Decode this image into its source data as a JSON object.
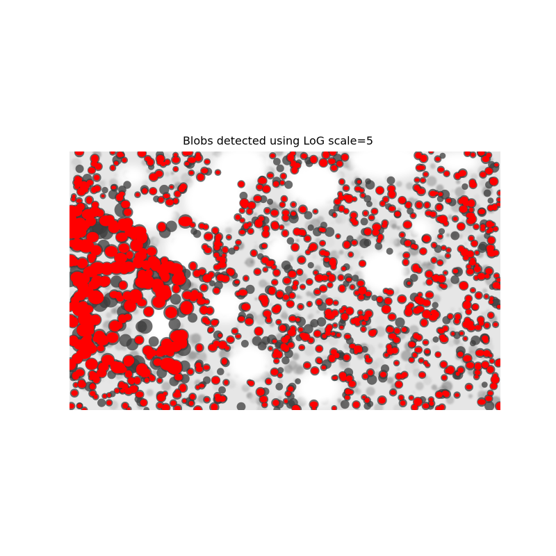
{
  "figure": {
    "title": "Blobs detected using LoG scale=5"
  },
  "image": {
    "description_name": "microscopy-tissue",
    "blob_color": "#ff0000",
    "background_color": "#ffffff",
    "tissue_color": "#8c8c8c",
    "nucleus_color": "#3c3c3c"
  }
}
